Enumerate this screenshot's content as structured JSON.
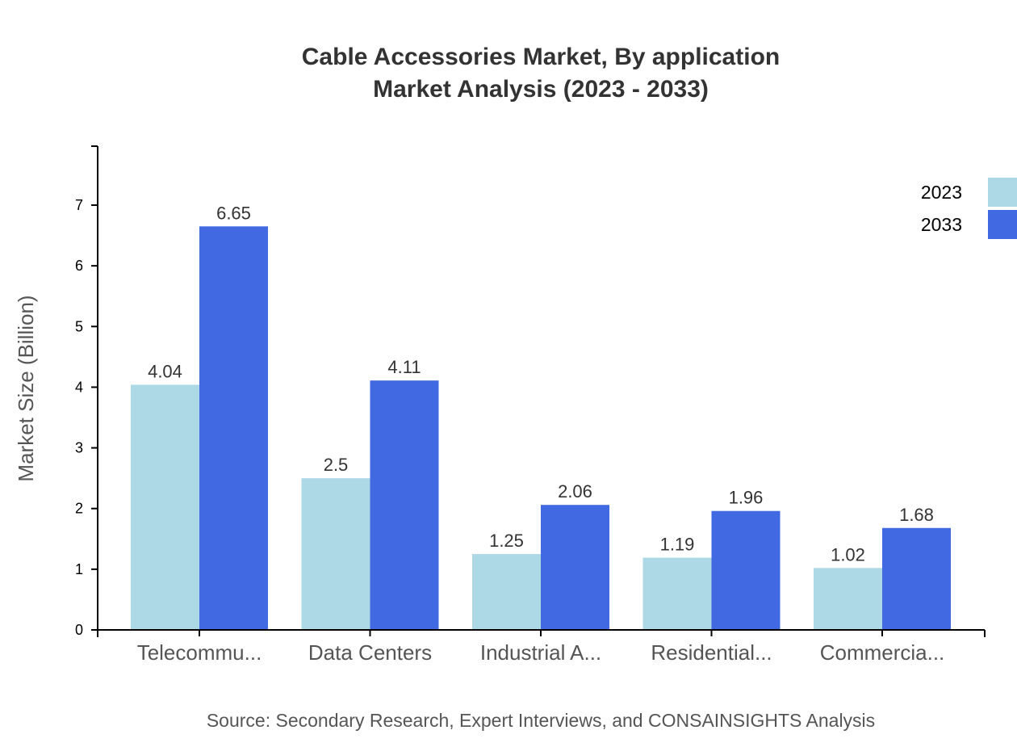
{
  "chart_data": {
    "type": "bar",
    "title_line1": "Cable Accessories Market, By application",
    "title_line2": "Market Analysis (2023 - 2033)",
    "xlabel": "",
    "ylabel": "Market Size (Billion)",
    "categories": [
      "Telecommu...",
      "Data Centers",
      "Industrial A...",
      "Residential...",
      "Commercia..."
    ],
    "series": [
      {
        "name": "2023",
        "color": "#ADD8E6",
        "values": [
          4.04,
          2.5,
          1.25,
          1.19,
          1.02
        ]
      },
      {
        "name": "2033",
        "color": "#4169E1",
        "values": [
          6.65,
          4.11,
          2.06,
          1.96,
          1.68
        ]
      }
    ],
    "ylim": [
      0,
      7.97
    ],
    "yticks": [
      "0",
      "1",
      "2",
      "3",
      "4",
      "5",
      "6",
      "7"
    ],
    "grid": false,
    "legend_position": "top-right",
    "source": "Source: Secondary Research, Expert Interviews, and CONSAINSIGHTS Analysis"
  }
}
